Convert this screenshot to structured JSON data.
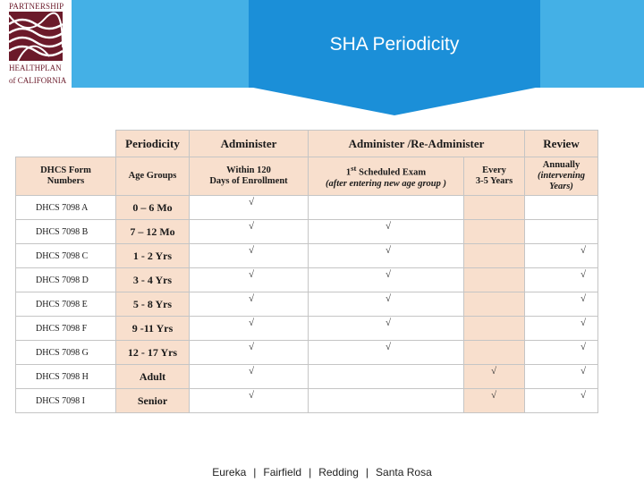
{
  "title": "SHA Periodicity",
  "logo": {
    "top_text": "PARTNERSHIP",
    "bottom_text_1": "HEALTHPLAN",
    "bottom_text_2": "of CALIFORNIA"
  },
  "table": {
    "group_headers": {
      "periodicity": "Periodicity",
      "administer": "Administer",
      "administer_readminister": "Administer /Re-Administer",
      "review": "Review"
    },
    "sub_headers": {
      "form_numbers_1": "DHCS Form",
      "form_numbers_2": "Numbers",
      "age_groups": "Age Groups",
      "within_1": "Within 120",
      "within_2": "Days of Enrollment",
      "first_scheduled_a": "1",
      "first_scheduled_sup": "st",
      "first_scheduled_b": " Scheduled Exam",
      "first_scheduled_2": "(after entering new age group )",
      "every_1": "Every",
      "every_2": "3-5 Years",
      "annually_1": "Annually",
      "annually_2": "(intervening Years)"
    },
    "check_mark": "√",
    "rows": [
      {
        "form": "DHCS 7098 A",
        "age": "0 – 6 Mo",
        "administer": "√",
        "first_exam": "",
        "every": "",
        "annually": ""
      },
      {
        "form": "DHCS 7098 B",
        "age": "7 – 12 Mo",
        "administer": "√",
        "first_exam": "√",
        "every": "",
        "annually": ""
      },
      {
        "form": "DHCS 7098 C",
        "age": "1 - 2 Yrs",
        "administer": "√",
        "first_exam": "√",
        "every": "",
        "annually": "√"
      },
      {
        "form": "DHCS 7098 D",
        "age": "3 - 4 Yrs",
        "administer": "√",
        "first_exam": "√",
        "every": "",
        "annually": "√"
      },
      {
        "form": "DHCS 7098 E",
        "age": "5 - 8 Yrs",
        "administer": "√",
        "first_exam": "√",
        "every": "",
        "annually": "√"
      },
      {
        "form": "DHCS 7098 F",
        "age": "9 -11 Yrs",
        "administer": "√",
        "first_exam": "√",
        "every": "",
        "annually": "√"
      },
      {
        "form": "DHCS 7098 G",
        "age": "12 - 17 Yrs",
        "administer": "√",
        "first_exam": "√",
        "every": "",
        "annually": "√"
      },
      {
        "form": "DHCS 7098 H",
        "age": "Adult",
        "administer": "√",
        "first_exam": "",
        "every": "√",
        "annually": "√"
      },
      {
        "form": "DHCS 7098 I",
        "age": "Senior",
        "administer": "√",
        "first_exam": "",
        "every": "√",
        "annually": "√"
      }
    ]
  },
  "footer": {
    "locations": [
      "Eureka",
      "Fairfield",
      "Redding",
      "Santa Rosa"
    ],
    "separator": "|"
  }
}
